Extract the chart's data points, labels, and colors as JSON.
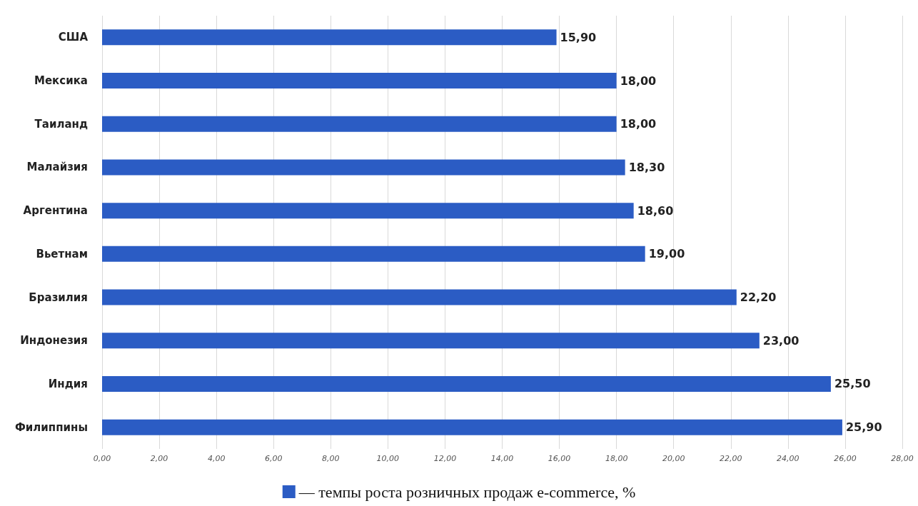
{
  "chart_data": {
    "type": "bar",
    "orientation": "horizontal",
    "categories": [
      "США",
      "Мексика",
      "Таиланд",
      "Малайзия",
      "Аргентина",
      "Вьетнам",
      "Бразилия",
      "Индонезия",
      "Индия",
      "Филиппины"
    ],
    "series": [
      {
        "name": "— темпы роста розничных продаж e-commerce, %",
        "color": "#2b5cc4",
        "values": [
          15.9,
          18,
          18,
          18.3,
          18.6,
          19,
          22.2,
          23,
          25.5,
          25.9
        ],
        "value_labels": [
          "15,90",
          "18,00",
          "18,00",
          "18,30",
          "18,60",
          "19,00",
          "22,20",
          "23,00",
          "25,50",
          "25,90"
        ]
      }
    ],
    "xlim": [
      0,
      28
    ],
    "xticks": [
      {
        "value": 0,
        "label": "0,00"
      },
      {
        "value": 2,
        "label": "2,00"
      },
      {
        "value": 4,
        "label": "4,00"
      },
      {
        "value": 6,
        "label": "6,00"
      },
      {
        "value": 8,
        "label": "8,00"
      },
      {
        "value": 10,
        "label": "10,00"
      },
      {
        "value": 12,
        "label": "12,00"
      },
      {
        "value": 14,
        "label": "14,00"
      },
      {
        "value": 16,
        "label": "16,00"
      },
      {
        "value": 18,
        "label": "18,00"
      },
      {
        "value": 20,
        "label": "20,00"
      },
      {
        "value": 22,
        "label": "22,00"
      },
      {
        "value": 24,
        "label": "24,00"
      },
      {
        "value": 26,
        "label": "26,00"
      },
      {
        "value": 28,
        "label": "28,00"
      }
    ],
    "grid": "x",
    "legend": "bottom"
  }
}
